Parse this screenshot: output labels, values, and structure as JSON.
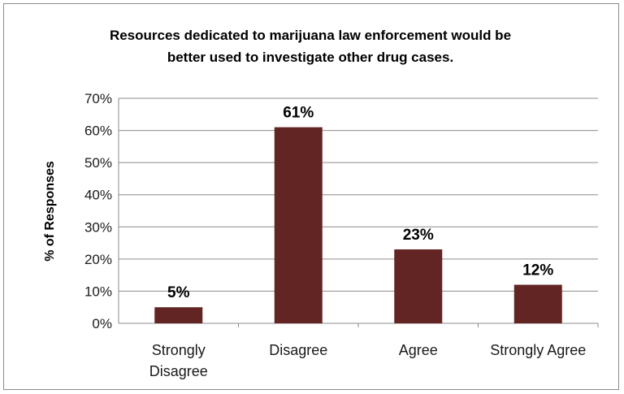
{
  "chart_data": {
    "type": "bar",
    "title": "Resources dedicated to marijuana law enforcement would be better used to investigate other drug cases.",
    "xlabel": "",
    "ylabel": "% of Responses",
    "categories": [
      "Strongly Disagree",
      "Disagree",
      "Agree",
      "Strongly Agree"
    ],
    "values": [
      5,
      61,
      23,
      12
    ],
    "data_labels": [
      "5%",
      "61%",
      "23%",
      "12%"
    ],
    "ylim": [
      0,
      70
    ],
    "yticks": [
      "0%",
      "10%",
      "20%",
      "30%",
      "40%",
      "50%",
      "60%",
      "70%"
    ],
    "grid": true,
    "legend": "none",
    "bar_color": "#632523"
  }
}
